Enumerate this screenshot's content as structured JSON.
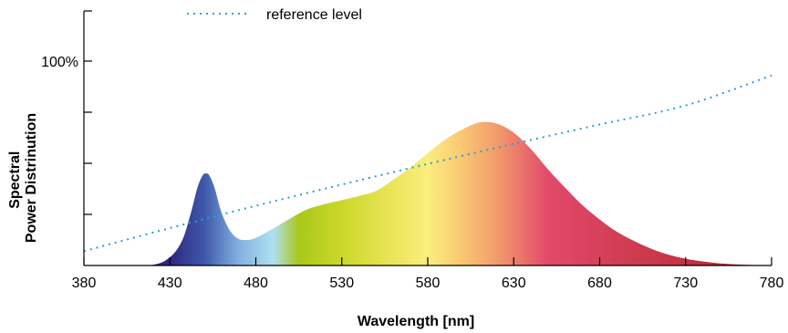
{
  "chart_data": {
    "type": "area",
    "xlabel": "Wavelength [nm]",
    "ylabel_lines": [
      "Spectral",
      "Power Distrinution"
    ],
    "xlim": [
      380,
      780
    ],
    "ylim": [
      0,
      130
    ],
    "x_ticks": [
      380,
      430,
      480,
      530,
      580,
      630,
      680,
      730,
      780
    ],
    "y_tick_values": [
      25,
      50,
      75,
      100
    ],
    "y_tick_labels": [
      {
        "value": 100,
        "label": "100%"
      }
    ],
    "legend": {
      "placement": "top",
      "entries": [
        {
          "label": "reference level",
          "style": "dotted",
          "color": "#2a9fd6"
        }
      ]
    },
    "series": [
      {
        "points": [
          [
            380,
            0
          ],
          [
            400,
            0
          ],
          [
            420,
            0.3
          ],
          [
            430,
            4
          ],
          [
            437,
            12
          ],
          [
            442,
            25
          ],
          [
            446,
            38
          ],
          [
            449,
            44
          ],
          [
            451,
            45
          ],
          [
            453,
            44
          ],
          [
            456,
            38
          ],
          [
            460,
            26
          ],
          [
            465,
            17
          ],
          [
            470,
            13
          ],
          [
            475,
            12.5
          ],
          [
            480,
            13.5
          ],
          [
            490,
            18
          ],
          [
            500,
            23
          ],
          [
            510,
            27.5
          ],
          [
            520,
            30
          ],
          [
            530,
            32
          ],
          [
            540,
            34
          ],
          [
            550,
            36.5
          ],
          [
            560,
            42
          ],
          [
            570,
            48
          ],
          [
            580,
            55
          ],
          [
            590,
            61.5
          ],
          [
            600,
            66.5
          ],
          [
            610,
            70
          ],
          [
            620,
            69.5
          ],
          [
            630,
            65
          ],
          [
            640,
            57
          ],
          [
            650,
            47
          ],
          [
            660,
            38
          ],
          [
            670,
            29.5
          ],
          [
            680,
            22.5
          ],
          [
            690,
            16.5
          ],
          [
            700,
            12
          ],
          [
            710,
            8.2
          ],
          [
            720,
            5.3
          ],
          [
            730,
            3.3
          ],
          [
            740,
            2
          ],
          [
            750,
            1
          ],
          [
            760,
            0.5
          ],
          [
            770,
            0.2
          ],
          [
            780,
            0
          ]
        ],
        "gradient_stops": [
          {
            "x": 430,
            "color": "#2e2780"
          },
          {
            "x": 450,
            "color": "#3f58aa"
          },
          {
            "x": 470,
            "color": "#83b0e0"
          },
          {
            "x": 490,
            "color": "#aee0f0"
          },
          {
            "x": 505,
            "color": "#a9c81a"
          },
          {
            "x": 530,
            "color": "#cbd82a"
          },
          {
            "x": 560,
            "color": "#eae55a"
          },
          {
            "x": 580,
            "color": "#fbee7e"
          },
          {
            "x": 600,
            "color": "#f9c773"
          },
          {
            "x": 620,
            "color": "#f39c6c"
          },
          {
            "x": 650,
            "color": "#e2496a"
          },
          {
            "x": 720,
            "color": "#c73647"
          },
          {
            "x": 780,
            "color": "#a8212c"
          }
        ]
      },
      {
        "name": "reference level",
        "style": "dotted",
        "color": "#2a9fd6",
        "points": [
          [
            380,
            7
          ],
          [
            430,
            18.3
          ],
          [
            480,
            29.2
          ],
          [
            530,
            39.6
          ],
          [
            580,
            49.7
          ],
          [
            630,
            59.5
          ],
          [
            680,
            69
          ],
          [
            730,
            78.3
          ],
          [
            780,
            93
          ]
        ]
      }
    ]
  }
}
